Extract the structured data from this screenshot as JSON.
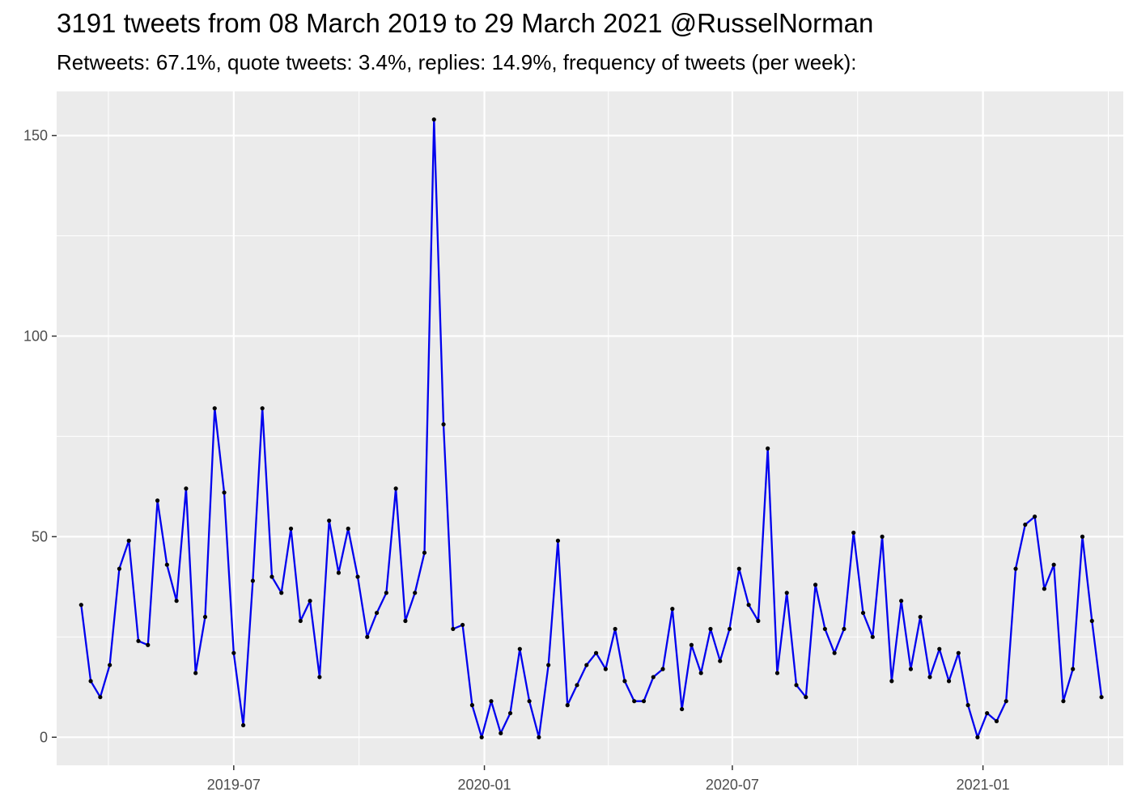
{
  "chart_data": {
    "type": "line",
    "title": "3191 tweets from 08 March 2019 to 29 March 2021 @RusselNorman",
    "subtitle": "Retweets: 67.1%, quote tweets: 3.4%, replies: 14.9%, frequency of tweets (per week):",
    "xlabel": "",
    "ylabel": "",
    "ylim": [
      -7,
      161
    ],
    "xlim": [
      "2019-02-21",
      "2021-04-14"
    ],
    "yticks": [
      0,
      50,
      100,
      150
    ],
    "xticks": [
      {
        "date": "2019-07-01",
        "label": "2019-07"
      },
      {
        "date": "2020-01-01",
        "label": "2020-01"
      },
      {
        "date": "2020-07-01",
        "label": "2020-07"
      },
      {
        "date": "2021-01-01",
        "label": "2021-01"
      }
    ],
    "grid": true,
    "line_color": "#0000ee",
    "point_color": "#000000",
    "panel_background": "#ebebeb",
    "series": [
      {
        "x": [
          "2019-03-11",
          "2019-03-18",
          "2019-03-25",
          "2019-04-01",
          "2019-04-08",
          "2019-04-15",
          "2019-04-22",
          "2019-04-29",
          "2019-05-06",
          "2019-05-13",
          "2019-05-20",
          "2019-05-27",
          "2019-06-03",
          "2019-06-10",
          "2019-06-17",
          "2019-06-24",
          "2019-07-01",
          "2019-07-08",
          "2019-07-15",
          "2019-07-22",
          "2019-07-29",
          "2019-08-05",
          "2019-08-12",
          "2019-08-19",
          "2019-08-26",
          "2019-09-02",
          "2019-09-09",
          "2019-09-16",
          "2019-09-23",
          "2019-09-30",
          "2019-10-07",
          "2019-10-14",
          "2019-10-21",
          "2019-10-28",
          "2019-11-04",
          "2019-11-11",
          "2019-11-18",
          "2019-11-25",
          "2019-12-02",
          "2019-12-09",
          "2019-12-16",
          "2019-12-23",
          "2019-12-30",
          "2020-01-06",
          "2020-01-13",
          "2020-01-20",
          "2020-01-27",
          "2020-02-03",
          "2020-02-10",
          "2020-02-17",
          "2020-02-24",
          "2020-03-02",
          "2020-03-09",
          "2020-03-16",
          "2020-03-23",
          "2020-03-30",
          "2020-04-06",
          "2020-04-13",
          "2020-04-20",
          "2020-04-27",
          "2020-05-04",
          "2020-05-11",
          "2020-05-18",
          "2020-05-25",
          "2020-06-01",
          "2020-06-08",
          "2020-06-15",
          "2020-06-22",
          "2020-06-29",
          "2020-07-06",
          "2020-07-13",
          "2020-07-20",
          "2020-07-27",
          "2020-08-03",
          "2020-08-10",
          "2020-08-17",
          "2020-08-24",
          "2020-08-31",
          "2020-09-07",
          "2020-09-14",
          "2020-09-21",
          "2020-09-28",
          "2020-10-05",
          "2020-10-12",
          "2020-10-19",
          "2020-10-26",
          "2020-11-02",
          "2020-11-09",
          "2020-11-16",
          "2020-11-23",
          "2020-11-30",
          "2020-12-07",
          "2020-12-14",
          "2020-12-21",
          "2020-12-28",
          "2021-01-04",
          "2021-01-11",
          "2021-01-18",
          "2021-01-25",
          "2021-02-01",
          "2021-02-08",
          "2021-02-15",
          "2021-02-22",
          "2021-03-01",
          "2021-03-08",
          "2021-03-15",
          "2021-03-22",
          "2021-03-29"
        ],
        "values": [
          33,
          14,
          10,
          18,
          42,
          49,
          24,
          23,
          59,
          43,
          34,
          62,
          16,
          30,
          82,
          61,
          21,
          3,
          39,
          82,
          40,
          36,
          52,
          29,
          34,
          15,
          54,
          41,
          52,
          40,
          25,
          31,
          36,
          62,
          29,
          36,
          46,
          154,
          78,
          27,
          28,
          8,
          0,
          9,
          1,
          6,
          22,
          9,
          0,
          18,
          49,
          8,
          13,
          18,
          21,
          17,
          27,
          14,
          9,
          9,
          15,
          17,
          32,
          7,
          23,
          16,
          27,
          19,
          27,
          42,
          33,
          29,
          72,
          16,
          36,
          13,
          10,
          38,
          27,
          21,
          27,
          51,
          31,
          25,
          50,
          14,
          34,
          17,
          30,
          15,
          22,
          14,
          21,
          8,
          0,
          6,
          4,
          9,
          42,
          53,
          55,
          37,
          43,
          9,
          17,
          50,
          29,
          10
        ]
      }
    ]
  }
}
